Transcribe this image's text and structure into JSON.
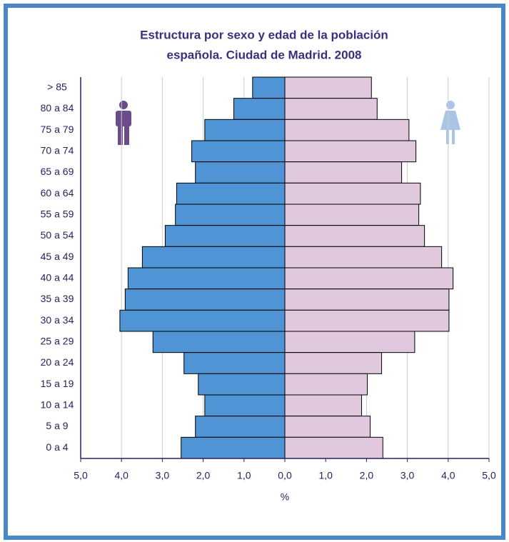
{
  "chart_data": {
    "type": "pyramid",
    "title_lines": [
      "Estructura por sexo y edad de la población",
      "española. Ciudad de Madrid. 2008"
    ],
    "x_label": "%",
    "categories": [
      "> 85",
      "80 a 84",
      "75 a 79",
      "70 a 74",
      "65 a 69",
      "60 a 64",
      "55 a 59",
      "50 a 54",
      "45 a 49",
      "40 a 44",
      "35 a 39",
      "30 a 34",
      "25 a 29",
      "20 a 24",
      "15 a 19",
      "10 a 14",
      "5 a 9",
      "0 a 4"
    ],
    "series": [
      {
        "color": "#4f94d4",
        "values": [
          0.79,
          1.25,
          1.96,
          2.28,
          2.19,
          2.65,
          2.68,
          2.93,
          3.49,
          3.84,
          3.91,
          4.04,
          3.23,
          2.47,
          2.12,
          1.96,
          2.19,
          2.54
        ]
      },
      {
        "color": "#e0c8de",
        "values": [
          2.12,
          2.26,
          3.04,
          3.21,
          2.86,
          3.32,
          3.28,
          3.42,
          3.84,
          4.12,
          4.02,
          4.02,
          3.18,
          2.37,
          2.02,
          1.88,
          2.09,
          2.4
        ]
      }
    ],
    "xlim": [
      0,
      5
    ],
    "xticks_left": [
      {
        "value": 5,
        "label": "5,0"
      },
      {
        "value": 4,
        "label": "4,0"
      },
      {
        "value": 3,
        "label": "3,0"
      },
      {
        "value": 2,
        "label": "2,0"
      },
      {
        "value": 1,
        "label": "1,0"
      }
    ],
    "xticks_right": [
      {
        "value": 0,
        "label": "0,0"
      },
      {
        "value": 1,
        "label": "1,0"
      },
      {
        "value": 2,
        "label": "2,0"
      },
      {
        "value": 3,
        "label": "3,0"
      },
      {
        "value": 4,
        "label": "4,0"
      },
      {
        "value": 5,
        "label": "5,0"
      }
    ],
    "grid": true
  }
}
